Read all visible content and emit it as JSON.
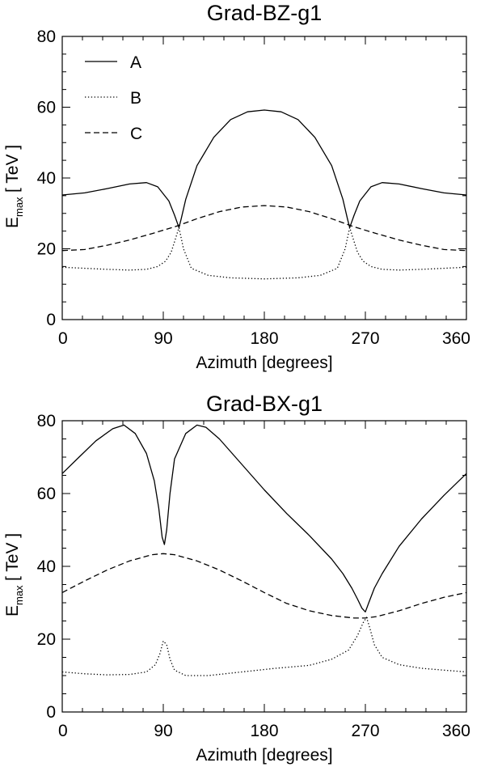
{
  "chart_data": [
    {
      "type": "line",
      "title": "Grad-BZ-g1",
      "xlabel": "Azimuth [degrees]",
      "ylabel_main": "E",
      "ylabel_sub": "max",
      "ylabel_unit": "[ TeV ]",
      "xlim": [
        0,
        360
      ],
      "ylim": [
        0,
        80
      ],
      "xticks": [
        0,
        90,
        180,
        270,
        360
      ],
      "yticks": [
        0,
        20,
        40,
        60,
        80
      ],
      "grid": false,
      "legend": "top-left",
      "series": [
        {
          "name": "A",
          "style": "solid",
          "x": [
            0,
            20,
            40,
            60,
            75,
            85,
            95,
            100,
            104,
            106,
            110,
            120,
            135,
            150,
            165,
            180,
            195,
            210,
            225,
            240,
            250,
            254,
            256,
            260,
            265,
            275,
            285,
            300,
            320,
            340,
            360
          ],
          "y": [
            35.2,
            35.8,
            37.0,
            38.3,
            38.7,
            37.5,
            33.5,
            29.5,
            26.0,
            28.5,
            34.0,
            43.5,
            51.5,
            56.5,
            58.7,
            59.2,
            58.7,
            56.5,
            51.5,
            43.5,
            34.0,
            28.5,
            26.0,
            29.5,
            33.5,
            37.5,
            38.7,
            38.3,
            37.0,
            35.8,
            35.2
          ]
        },
        {
          "name": "B",
          "style": "dotted",
          "x": [
            0,
            20,
            40,
            60,
            75,
            85,
            92,
            97,
            101,
            104,
            108,
            115,
            130,
            150,
            180,
            210,
            230,
            245,
            252,
            256,
            259,
            263,
            268,
            275,
            285,
            300,
            320,
            340,
            360
          ],
          "y": [
            14.8,
            14.5,
            14.2,
            14.0,
            14.2,
            15.0,
            16.5,
            19.0,
            23.0,
            26.0,
            20.0,
            14.5,
            12.5,
            11.8,
            11.5,
            11.8,
            12.5,
            14.5,
            20.0,
            26.0,
            23.0,
            19.0,
            16.5,
            15.0,
            14.2,
            14.0,
            14.2,
            14.5,
            14.8
          ]
        },
        {
          "name": "C",
          "style": "dashed",
          "x": [
            0,
            20,
            40,
            60,
            80,
            100,
            120,
            140,
            160,
            180,
            200,
            220,
            240,
            260,
            280,
            300,
            320,
            340,
            360
          ],
          "y": [
            19.5,
            19.8,
            21.0,
            22.5,
            24.3,
            26.2,
            28.5,
            30.5,
            31.8,
            32.2,
            31.8,
            30.5,
            28.5,
            26.2,
            24.3,
            22.5,
            21.0,
            19.8,
            19.5
          ]
        }
      ]
    },
    {
      "type": "line",
      "title": "Grad-BX-g1",
      "xlabel": "Azimuth [degrees]",
      "ylabel_main": "E",
      "ylabel_sub": "max",
      "ylabel_unit": "[ TeV ]",
      "xlim": [
        0,
        360
      ],
      "ylim": [
        0,
        80
      ],
      "xticks": [
        0,
        90,
        180,
        270,
        360
      ],
      "yticks": [
        0,
        20,
        40,
        60,
        80
      ],
      "grid": false,
      "series": [
        {
          "name": "A",
          "style": "solid",
          "x": [
            0,
            15,
            30,
            45,
            55,
            65,
            75,
            82,
            86,
            89,
            91,
            93,
            96,
            100,
            110,
            120,
            128,
            140,
            160,
            180,
            200,
            220,
            240,
            250,
            258,
            263,
            267,
            270,
            273,
            278,
            285,
            300,
            320,
            340,
            360
          ],
          "y": [
            65.5,
            70.0,
            74.5,
            77.8,
            78.8,
            76.5,
            71.0,
            63.5,
            56.0,
            48.0,
            46.0,
            50.0,
            60.0,
            69.5,
            76.5,
            78.8,
            78.2,
            75.0,
            68.0,
            61.0,
            54.5,
            48.5,
            42.0,
            38.0,
            34.0,
            31.0,
            28.5,
            27.5,
            30.0,
            34.0,
            38.0,
            45.5,
            53.0,
            59.5,
            65.5
          ]
        },
        {
          "name": "B",
          "style": "dotted",
          "x": [
            0,
            20,
            40,
            60,
            75,
            83,
            87,
            90,
            93,
            96,
            100,
            110,
            130,
            160,
            190,
            220,
            240,
            255,
            263,
            268,
            271,
            274,
            278,
            285,
            300,
            320,
            340,
            360
          ],
          "y": [
            11.0,
            10.5,
            10.2,
            10.3,
            11.0,
            13.0,
            16.0,
            19.5,
            18.5,
            14.5,
            11.5,
            10.0,
            10.0,
            11.0,
            12.0,
            12.8,
            14.5,
            17.0,
            21.0,
            24.5,
            26.0,
            23.0,
            18.5,
            15.0,
            13.0,
            12.0,
            11.5,
            11.0
          ]
        },
        {
          "name": "C",
          "style": "dashed",
          "x": [
            0,
            20,
            40,
            60,
            80,
            90,
            100,
            120,
            140,
            160,
            180,
            200,
            220,
            240,
            260,
            270,
            280,
            300,
            320,
            340,
            360
          ],
          "y": [
            32.8,
            36.0,
            39.0,
            41.5,
            43.2,
            43.5,
            43.2,
            41.5,
            39.0,
            36.0,
            32.8,
            29.8,
            27.8,
            26.5,
            25.8,
            25.8,
            26.2,
            27.8,
            29.8,
            31.5,
            32.8
          ]
        }
      ]
    }
  ]
}
